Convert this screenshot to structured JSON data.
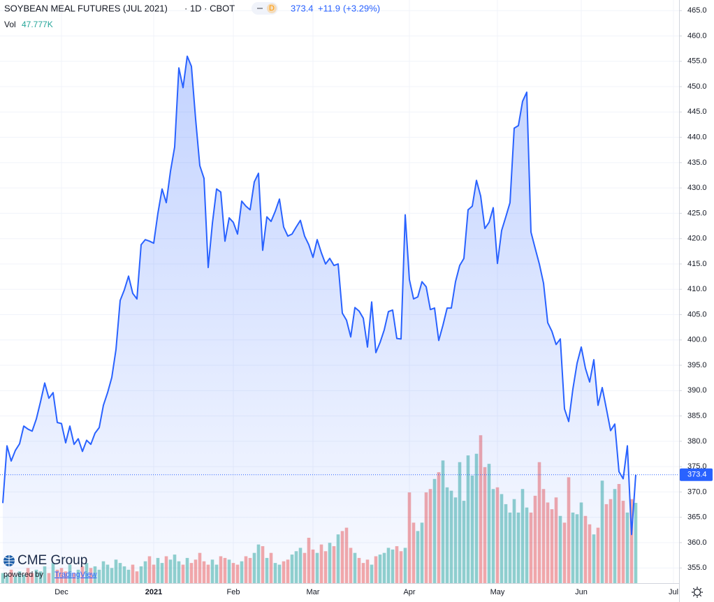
{
  "header": {
    "title": "SOYBEAN MEAL FUTURES (JUL 2021)",
    "interval": "· 1D · CBOT",
    "badge": "D",
    "change": "+11.9",
    "change_pct": "(+3.29%)"
  },
  "logo": {
    "brand": "CME Group",
    "powered": "powered by",
    "vendor": "TradingView"
  },
  "chart_data": {
    "type": "area",
    "grid": true,
    "ylim": [
      352,
      467.1
    ],
    "yticks": [
      {
        "value": 355,
        "label": "355.0"
      },
      {
        "value": 360,
        "label": "360.0"
      },
      {
        "value": 365,
        "label": "365.0"
      },
      {
        "value": 370,
        "label": "370.0"
      },
      {
        "value": 375,
        "label": "375.0"
      },
      {
        "value": 380,
        "label": "380.0"
      },
      {
        "value": 385,
        "label": "385.0"
      },
      {
        "value": 390,
        "label": "390.0"
      },
      {
        "value": 395,
        "label": "395.0"
      },
      {
        "value": 400,
        "label": "400.0"
      },
      {
        "value": 405,
        "label": "405.0"
      },
      {
        "value": 410,
        "label": "410.0"
      },
      {
        "value": 415,
        "label": "415.0"
      },
      {
        "value": 420,
        "label": "420.0"
      },
      {
        "value": 425,
        "label": "425.0"
      },
      {
        "value": 430,
        "label": "430.0"
      },
      {
        "value": 435,
        "label": "435.0"
      },
      {
        "value": 440,
        "label": "440.0"
      },
      {
        "value": 445,
        "label": "445.0"
      },
      {
        "value": 450,
        "label": "450.0"
      },
      {
        "value": 455,
        "label": "455.0"
      },
      {
        "value": 460,
        "label": "460.0"
      },
      {
        "value": 465,
        "label": "465.0"
      }
    ],
    "categories": [
      null,
      null,
      null,
      null,
      null,
      null,
      null,
      null,
      null,
      null,
      null,
      null,
      null,
      null,
      "Dec",
      null,
      null,
      null,
      null,
      null,
      null,
      null,
      null,
      null,
      null,
      null,
      null,
      null,
      null,
      null,
      null,
      null,
      null,
      null,
      null,
      null,
      "2021",
      null,
      null,
      null,
      null,
      null,
      null,
      null,
      null,
      null,
      null,
      null,
      null,
      null,
      null,
      null,
      null,
      null,
      null,
      "Feb",
      null,
      null,
      null,
      null,
      null,
      null,
      null,
      null,
      null,
      null,
      null,
      null,
      null,
      null,
      null,
      null,
      null,
      null,
      "Mar",
      null,
      null,
      null,
      null,
      null,
      null,
      null,
      null,
      null,
      null,
      null,
      null,
      null,
      null,
      null,
      null,
      null,
      null,
      null,
      null,
      null,
      null,
      "Apr",
      null,
      null,
      null,
      null,
      null,
      null,
      null,
      null,
      null,
      null,
      null,
      null,
      null,
      null,
      null,
      null,
      null,
      null,
      null,
      null,
      "May",
      null,
      null,
      null,
      null,
      null,
      null,
      null,
      null,
      null,
      null,
      null,
      null,
      null,
      null,
      null,
      null,
      null,
      null,
      null,
      "Jun",
      null,
      null,
      null,
      null,
      null,
      null,
      null,
      null,
      null,
      null,
      null,
      null,
      null,
      null,
      null,
      null,
      null,
      null,
      null,
      null,
      null,
      "Jul",
      null
    ],
    "series": [
      {
        "color": "#2962ff",
        "values": [
          367.8,
          379.1,
          376.1,
          378.2,
          379.5,
          383.0,
          382.4,
          382.0,
          384.4,
          387.8,
          391.5,
          388.5,
          389.6,
          383.7,
          383.5,
          379.7,
          383.0,
          379.4,
          380.5,
          378.0,
          380.2,
          379.4,
          381.6,
          382.7,
          387.1,
          389.6,
          392.6,
          398.1,
          407.8,
          409.9,
          412.6,
          409.2,
          408.1,
          418.8,
          419.8,
          419.5,
          419.1,
          425.0,
          429.8,
          427.1,
          433.3,
          438.1,
          453.7,
          449.8,
          456.0,
          454.0,
          443.6,
          434.4,
          431.9,
          414.3,
          423.0,
          429.8,
          429.2,
          419.5,
          424.1,
          423.2,
          420.9,
          427.4,
          426.4,
          425.7,
          431.2,
          432.9,
          417.7,
          424.3,
          423.4,
          425.4,
          427.8,
          422.3,
          420.5,
          420.9,
          422.3,
          423.6,
          420.5,
          418.8,
          416.3,
          419.8,
          417.2,
          415.0,
          416.1,
          414.7,
          415.0,
          405.3,
          403.9,
          400.6,
          406.4,
          405.7,
          404.3,
          398.6,
          407.5,
          397.5,
          399.5,
          402.0,
          405.6,
          405.9,
          400.3,
          400.2,
          424.7,
          411.9,
          408.1,
          408.5,
          411.5,
          410.5,
          406.0,
          406.3,
          399.9,
          402.9,
          406.3,
          406.3,
          411.5,
          414.7,
          416.1,
          425.7,
          426.4,
          431.5,
          428.4,
          422.0,
          423.2,
          426.1,
          415.1,
          421.6,
          424.3,
          427.1,
          441.8,
          442.3,
          447.1,
          448.9,
          421.3,
          418.1,
          415.0,
          411.2,
          403.4,
          401.7,
          399.1,
          400.2,
          386.4,
          383.9,
          390.3,
          395.4,
          398.6,
          394.4,
          391.7,
          396.1,
          387.1,
          390.6,
          386.4,
          382.1,
          383.4,
          374.0,
          372.6,
          379.1,
          361.6,
          373.4,
          null,
          null,
          null,
          null,
          null,
          null,
          null,
          null,
          null,
          null
        ]
      }
    ],
    "volume": {
      "name": "Vol",
      "up_color": "#26a69a",
      "down_color": "#ef5350",
      "ylim": [
        0,
        347
      ],
      "last_value_label": "47.777K",
      "values": [
        6,
        5,
        8,
        4,
        7,
        5,
        9,
        6,
        8,
        7,
        10,
        6,
        12,
        8,
        9,
        7,
        11,
        6,
        8,
        10,
        12,
        9,
        10,
        8,
        13,
        11,
        9,
        14,
        12,
        10,
        8,
        11,
        7,
        10,
        13,
        16,
        11,
        15,
        12,
        16,
        14,
        17,
        13,
        11,
        15,
        12,
        14,
        18,
        13,
        11,
        14,
        11,
        16,
        15,
        14,
        12,
        11,
        13,
        16,
        15,
        18,
        23,
        22,
        15,
        18,
        12,
        11,
        13,
        14,
        17,
        19,
        21,
        18,
        27,
        20,
        18,
        23,
        19,
        24,
        22,
        29,
        31,
        33,
        21,
        18,
        15,
        12,
        14,
        11,
        16,
        17,
        18,
        21,
        20,
        22,
        19,
        21,
        54,
        36,
        31,
        36,
        54,
        56,
        62,
        66,
        73,
        57,
        55,
        51,
        72,
        49,
        76,
        64,
        77,
        88,
        69,
        71,
        56,
        57,
        53,
        47,
        42,
        50,
        42,
        56,
        45,
        42,
        52,
        72,
        56,
        48,
        44,
        51,
        40,
        36,
        63,
        42,
        41,
        48,
        40,
        35,
        29,
        33,
        61,
        47,
        50,
        56,
        59,
        49,
        42,
        50,
        47.777,
        null,
        null,
        null,
        null,
        null,
        null,
        null,
        null,
        null,
        null
      ]
    }
  }
}
